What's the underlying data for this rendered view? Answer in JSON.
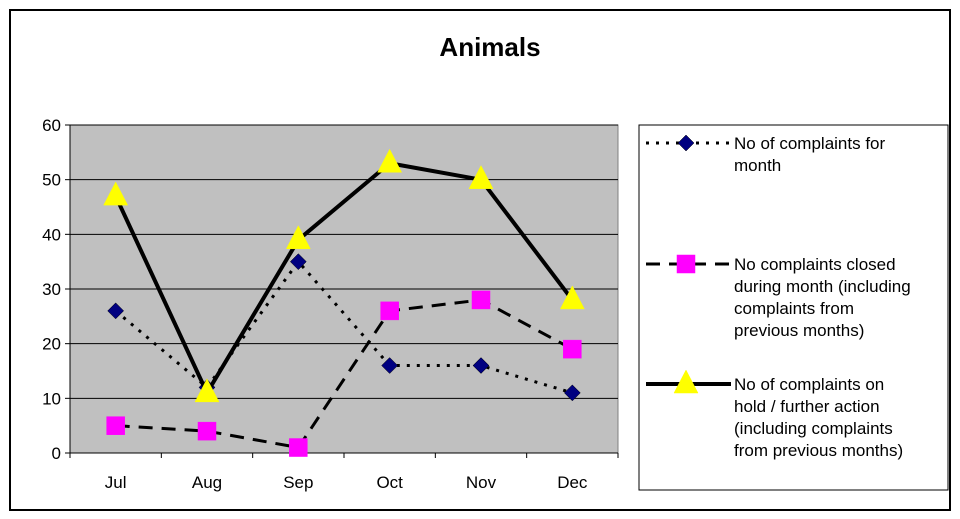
{
  "chart_data": {
    "type": "line",
    "title": "Animals",
    "xlabel": "",
    "ylabel": "",
    "categories": [
      "Jul",
      "Aug",
      "Sep",
      "Oct",
      "Nov",
      "Dec"
    ],
    "ylim": [
      0,
      60
    ],
    "yticks": [
      0,
      10,
      20,
      30,
      40,
      50,
      60
    ],
    "grid": true,
    "plot_background": "#c0c0c0",
    "legend_position": "right",
    "series": [
      {
        "name": "No of complaints for month",
        "legend_lines": [
          "No of complaints for",
          "month"
        ],
        "values": [
          26,
          12,
          35,
          16,
          16,
          11
        ],
        "color": "#000080",
        "line_color": "#000000",
        "line_style": "dotted",
        "marker": "diamond"
      },
      {
        "name": "No complaints closed during month (including complaints from previous months)",
        "legend_lines": [
          "No complaints closed",
          "during month (including",
          "complaints from",
          "previous months)"
        ],
        "values": [
          5,
          4,
          1,
          26,
          28,
          19
        ],
        "color": "#ff00ff",
        "line_color": "#000000",
        "line_style": "dashed",
        "marker": "square"
      },
      {
        "name": "No of complaints on hold / further action (including complaints from previous months)",
        "legend_lines": [
          "No of complaints on",
          "hold / further action",
          "(including complaints",
          "from previous months)"
        ],
        "values": [
          47,
          11,
          39,
          53,
          50,
          28
        ],
        "color": "#ffff00",
        "line_color": "#000000",
        "line_style": "solid",
        "marker": "triangle"
      }
    ]
  }
}
